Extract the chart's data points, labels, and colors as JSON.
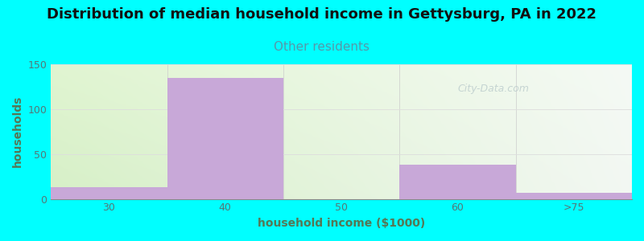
{
  "title": "Distribution of median household income in Gettysburg, PA in 2022",
  "subtitle": "Other residents",
  "xlabel": "household income ($1000)",
  "ylabel": "households",
  "background_color": "#00FFFF",
  "bar_color": "#c8a8d8",
  "bar_edge_color": "#b090c0",
  "categories": [
    "30",
    "40",
    "50",
    "60",
    ">75"
  ],
  "values": [
    13,
    135,
    0,
    38,
    7
  ],
  "bar_lefts": [
    0,
    1,
    2,
    3,
    4
  ],
  "bar_width": 1.0,
  "ylim": [
    0,
    150
  ],
  "xlim": [
    0,
    5
  ],
  "xtick_positions": [
    0.5,
    1.5,
    2.5,
    3.5,
    4.5
  ],
  "yticks": [
    0,
    50,
    100,
    150
  ],
  "title_fontsize": 13,
  "subtitle_fontsize": 11,
  "label_fontsize": 10,
  "tick_fontsize": 9,
  "title_color": "#111111",
  "subtitle_color": "#5599aa",
  "axis_label_color": "#557755",
  "tick_label_color": "#557777",
  "watermark_text": "City-Data.com",
  "watermark_color": "#bbcccc",
  "grid_color": "#dddddd",
  "gradient_color_topleft": [
    0.88,
    0.96,
    0.82,
    1.0
  ],
  "gradient_color_topright": [
    0.96,
    0.98,
    0.96,
    1.0
  ],
  "gradient_color_bottomleft": [
    0.84,
    0.94,
    0.78,
    1.0
  ],
  "gradient_color_bottomright": [
    0.95,
    0.97,
    0.95,
    1.0
  ]
}
